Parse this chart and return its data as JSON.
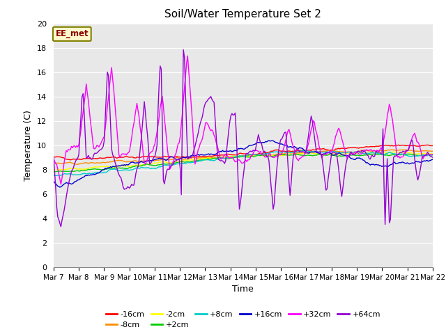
{
  "title": "Soil/Water Temperature Set 2",
  "xlabel": "Time",
  "ylabel": "Temperature (C)",
  "ylim": [
    0,
    20
  ],
  "yticks": [
    0,
    2,
    4,
    6,
    8,
    10,
    12,
    14,
    16,
    18,
    20
  ],
  "x_labels": [
    "Mar 7",
    "Mar 8",
    "Mar 9",
    "Mar 10",
    "Mar 11",
    "Mar 12",
    "Mar 13",
    "Mar 14",
    "Mar 15",
    "Mar 16",
    "Mar 17",
    "Mar 18",
    "Mar 19",
    "Mar 20",
    "Mar 21",
    "Mar 22"
  ],
  "annotation_text": "EE_met",
  "annotation_color": "#8B0000",
  "annotation_bg": "#FFFACD",
  "annotation_border": "#808000",
  "bg_color": "#E8E8E8",
  "series": [
    {
      "label": "-16cm",
      "color": "#FF0000"
    },
    {
      "label": "-8cm",
      "color": "#FF8C00"
    },
    {
      "label": "-2cm",
      "color": "#FFFF00"
    },
    {
      "label": "+2cm",
      "color": "#00CC00"
    },
    {
      "label": "+8cm",
      "color": "#00CCCC"
    },
    {
      "label": "+16cm",
      "color": "#0000CD"
    },
    {
      "label": "+32cm",
      "color": "#FF00FF"
    },
    {
      "label": "+64cm",
      "color": "#9400D3"
    }
  ]
}
